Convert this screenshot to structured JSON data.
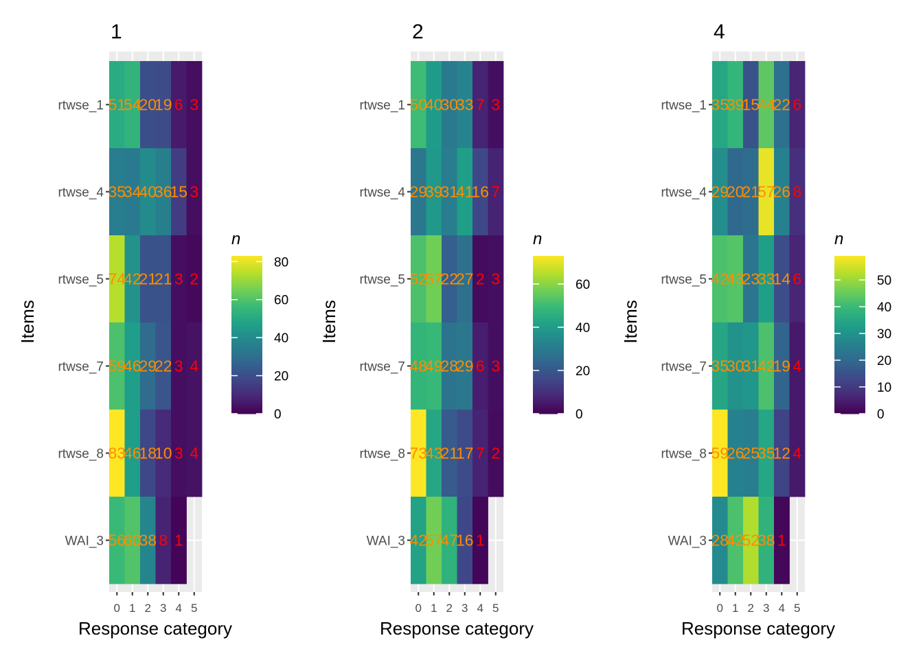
{
  "chart_data": [
    {
      "type": "heatmap",
      "title": "1",
      "xlabel": "Response category",
      "ylabel": "Items",
      "legend_title": "n",
      "legend_ticks": [
        0,
        20,
        40,
        60,
        80
      ],
      "value_range": [
        0,
        83
      ],
      "categories": [
        "0",
        "1",
        "2",
        "3",
        "4",
        "5"
      ],
      "items": [
        "rtwse_1",
        "rtwse_4",
        "rtwse_5",
        "rtwse_7",
        "rtwse_8",
        "WAI_3"
      ],
      "values": [
        [
          51,
          54,
          20,
          19,
          6,
          3
        ],
        [
          35,
          34,
          40,
          36,
          15,
          3
        ],
        [
          74,
          42,
          21,
          21,
          3,
          2
        ],
        [
          59,
          46,
          29,
          22,
          3,
          4
        ],
        [
          83,
          46,
          18,
          10,
          3,
          4
        ],
        [
          56,
          60,
          38,
          8,
          1,
          null
        ]
      ]
    },
    {
      "type": "heatmap",
      "title": "2",
      "xlabel": "Response category",
      "ylabel": "Items",
      "legend_title": "n",
      "legend_ticks": [
        0,
        20,
        40,
        60
      ],
      "value_range": [
        0,
        73
      ],
      "categories": [
        "0",
        "1",
        "2",
        "3",
        "4",
        "5"
      ],
      "items": [
        "rtwse_1",
        "rtwse_4",
        "rtwse_5",
        "rtwse_7",
        "rtwse_8",
        "WAI_3"
      ],
      "values": [
        [
          50,
          40,
          30,
          33,
          7,
          3
        ],
        [
          29,
          39,
          31,
          41,
          16,
          7
        ],
        [
          52,
          57,
          22,
          27,
          2,
          3
        ],
        [
          48,
          49,
          28,
          29,
          6,
          3
        ],
        [
          73,
          43,
          21,
          17,
          7,
          2
        ],
        [
          42,
          57,
          47,
          16,
          1,
          null
        ]
      ]
    },
    {
      "type": "heatmap",
      "title": "4",
      "xlabel": "Response category",
      "ylabel": "Items",
      "legend_title": "n",
      "legend_ticks": [
        0,
        10,
        20,
        30,
        40,
        50
      ],
      "value_range": [
        0,
        59
      ],
      "categories": [
        "0",
        "1",
        "2",
        "3",
        "4",
        "5"
      ],
      "items": [
        "rtwse_1",
        "rtwse_4",
        "rtwse_5",
        "rtwse_7",
        "rtwse_8",
        "WAI_3"
      ],
      "values": [
        [
          35,
          39,
          15,
          44,
          22,
          6
        ],
        [
          29,
          20,
          21,
          57,
          26,
          8
        ],
        [
          42,
          43,
          23,
          33,
          14,
          6
        ],
        [
          35,
          30,
          31,
          42,
          19,
          4
        ],
        [
          59,
          26,
          25,
          35,
          12,
          4
        ],
        [
          28,
          42,
          52,
          38,
          1,
          null
        ]
      ]
    }
  ]
}
